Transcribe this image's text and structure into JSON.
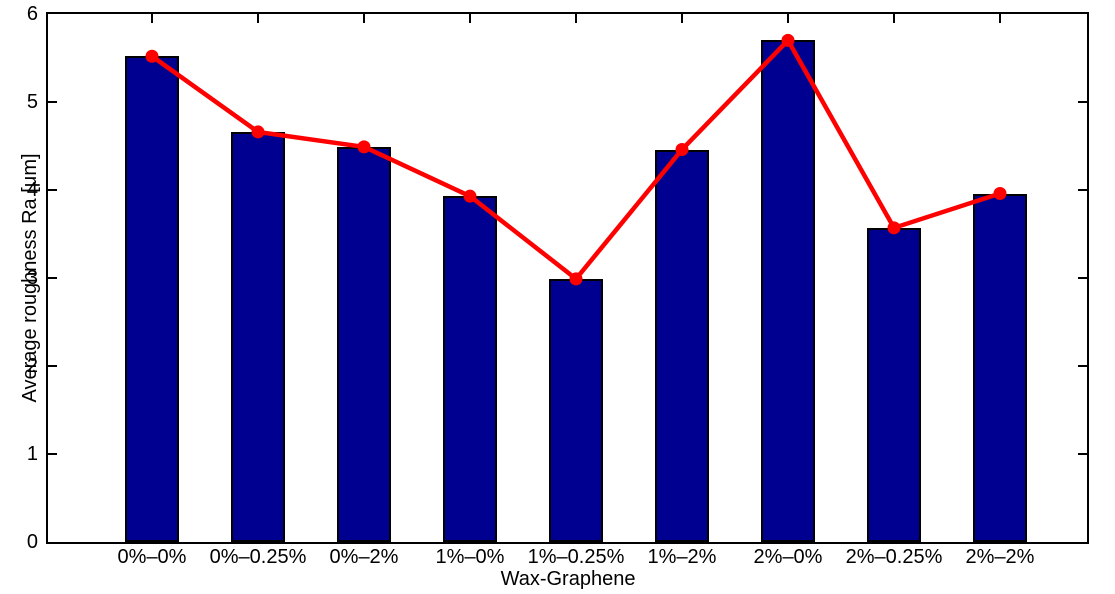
{
  "figure": {
    "background": "#ffffff",
    "axis_color": "#000000"
  },
  "chart_data": {
    "type": "bar",
    "title": "",
    "xlabel": "Wax-Graphene",
    "ylabel": "Average roughness Ra [μm]",
    "categories": [
      "0%–0%",
      "0%–0.25%",
      "0%–2%",
      "1%–0%",
      "1%–0.25%",
      "1%–2%",
      "2%–0%",
      "2%–0.25%",
      "2%–2%"
    ],
    "series": [
      {
        "name": "average-roughness-bars",
        "type": "bar",
        "color": "#000090",
        "edge_color": "#000000",
        "values": [
          5.52,
          4.66,
          4.49,
          3.93,
          2.99,
          4.46,
          5.7,
          3.57,
          3.96
        ]
      },
      {
        "name": "average-roughness-line",
        "type": "line",
        "color": "#ff0000",
        "marker": "circle",
        "values": [
          5.52,
          4.66,
          4.49,
          3.93,
          2.99,
          4.46,
          5.7,
          3.57,
          3.96
        ]
      }
    ],
    "ylim": [
      0,
      6
    ],
    "yticks": [
      0,
      1,
      2,
      3,
      4,
      5,
      6
    ],
    "grid": false,
    "legend": null,
    "box": true,
    "ticks_inward": true
  }
}
